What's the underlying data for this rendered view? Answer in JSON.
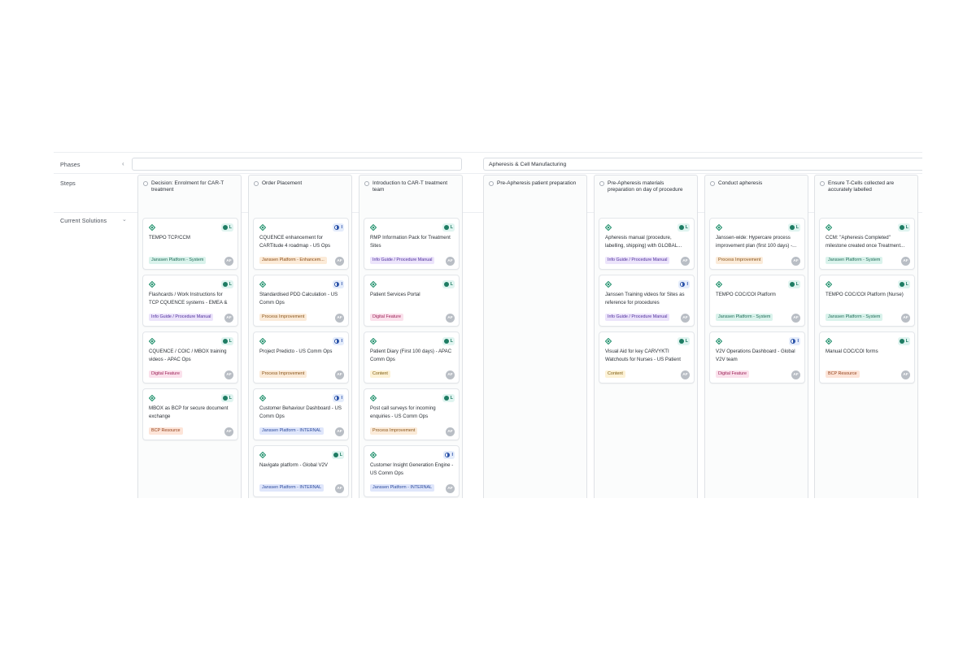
{
  "rows": {
    "phases_label": "Phases",
    "steps_label": "Steps",
    "solutions_label": "Current Solutions"
  },
  "phases": [
    {
      "label": ""
    },
    {
      "label": "Apheresis & Cell Manufacturing"
    }
  ],
  "columns": [
    {
      "step": "Decision: Enrolment for CAR-T treatment",
      "cards": [
        {
          "title": "TEMPO TCP/CCM",
          "status": "L",
          "tag": "Janssen Platform - System",
          "tag_kind": "platform",
          "avatar": "AF"
        },
        {
          "title": "Flashcards / Work Instructions for TCP CQUENCE systems - EMEA & APAC...",
          "status": "L",
          "tag": "Info Guide / Procedure Manual",
          "tag_kind": "info",
          "avatar": "AF"
        },
        {
          "title": "CQUENCE / COIC / MBOX training videos - APAC Ops",
          "status": "L",
          "tag": "Digital Feature",
          "tag_kind": "digital",
          "avatar": "AF"
        },
        {
          "title": "MBOX as BCP for secure document exchange",
          "status": "L",
          "tag": "BCP Resource",
          "tag_kind": "bcp",
          "avatar": "AF"
        }
      ]
    },
    {
      "step": "Order Placement",
      "cards": [
        {
          "title": "CQUENCE enhancement for CARTitude 4 roadmap - US Ops",
          "status": "I",
          "tag": "Janssen Platform - Enhancem...",
          "tag_kind": "enh",
          "avatar": "AF"
        },
        {
          "title": "Standardised PDD Calculation - US Comm Ops",
          "status": "I",
          "tag": "Process Improvement",
          "tag_kind": "process",
          "avatar": "AF"
        },
        {
          "title": "Project Predicto - US Comm Ops",
          "status": "I",
          "tag": "Process Improvement",
          "tag_kind": "process",
          "avatar": "AF"
        },
        {
          "title": "Customer Behaviour Dashboard - US Comm Ops",
          "status": "I",
          "tag": "Janssen Platform - INTERNAL",
          "tag_kind": "internal",
          "avatar": "AF"
        },
        {
          "title": "Navigate platform - Global V2V",
          "status": "L",
          "tag": "Janssen Platform - INTERNAL",
          "tag_kind": "internal",
          "avatar": "AF"
        }
      ]
    },
    {
      "step": "Introduction to CAR-T treatment team",
      "cards": [
        {
          "title": "RMP Information Pack for Treatment Sites",
          "status": "L",
          "tag": "Info Guide / Procedure Manual",
          "tag_kind": "info",
          "avatar": "AF"
        },
        {
          "title": "Patient Services Portal",
          "status": "L",
          "tag": "Digital Feature",
          "tag_kind": "digital",
          "avatar": "AF"
        },
        {
          "title": "Patient Diary (First 100 days) - APAC Comm Ops",
          "status": "L",
          "tag": "Content",
          "tag_kind": "content",
          "avatar": "AF"
        },
        {
          "title": "Post call surveys for incoming enquiries - US Comm Ops",
          "status": "L",
          "tag": "Process Improvement",
          "tag_kind": "process",
          "avatar": "AF"
        },
        {
          "title": "Customer Insight Generation Engine - US Comm Ops",
          "status": "I",
          "tag": "Janssen Platform - INTERNAL",
          "tag_kind": "internal",
          "avatar": "AF"
        }
      ]
    },
    {
      "step": "Pre-Apheresis patient preparation",
      "cards": []
    },
    {
      "step": "Pre-Apheresis materials preparation on day of procedure",
      "cards": [
        {
          "title": "Apheresis manual (procedure, labelling, shipping) with GLOBAL...",
          "status": "L",
          "tag": "Info Guide / Procedure Manual",
          "tag_kind": "info",
          "avatar": "AF"
        },
        {
          "title": "Janssen Training videos for Sites as reference for procedures",
          "status": "I",
          "tag": "Info Guide / Procedure Manual",
          "tag_kind": "info",
          "avatar": "AF"
        },
        {
          "title": "Visual Aid for key CARVYKTI Watchouts for Nurses - US Patient &...",
          "status": "L",
          "tag": "Content",
          "tag_kind": "content",
          "avatar": "AF"
        }
      ]
    },
    {
      "step": "Conduct apheresis",
      "cards": [
        {
          "title": "Janssen-wide: Hypercare process improvement plan (first 100 days) -...",
          "status": "L",
          "tag": "Process Improvement",
          "tag_kind": "process",
          "avatar": "AF"
        },
        {
          "title": "TEMPO COC/COI Platform",
          "status": "L",
          "tag": "Janssen Platform - System",
          "tag_kind": "platform",
          "avatar": "AF"
        },
        {
          "title": "V2V Operations Dashboard - Global V2V team",
          "status": "I",
          "tag": "Digital Feature",
          "tag_kind": "digital",
          "avatar": "AF"
        }
      ]
    },
    {
      "step": "Ensure T-Cells collected are accurately labelled",
      "cards": [
        {
          "title": "CCM: \"Apheresis Completed\" milestone created once Treatment...",
          "status": "L",
          "tag": "Janssen Platform - System",
          "tag_kind": "platform",
          "avatar": "AF"
        },
        {
          "title": "TEMPO COC/COI Platform (Nurse)",
          "status": "L",
          "tag": "Janssen Platform - System",
          "tag_kind": "platform",
          "avatar": "AF"
        },
        {
          "title": "Manual COC/COI forms",
          "status": "L",
          "tag": "BCP Resource",
          "tag_kind": "bcp",
          "avatar": "AF"
        }
      ]
    }
  ],
  "icons": {
    "solution": "diamond-icon",
    "status_live": "check-circle-icon",
    "status_in_progress": "half-circle-icon",
    "collapse": "chevron-left-icon",
    "expand": "chevron-down-icon"
  },
  "colors": {
    "diamond": "#1e8f6b",
    "live": "#1e7c63",
    "in_progress": "#2a52a8"
  }
}
